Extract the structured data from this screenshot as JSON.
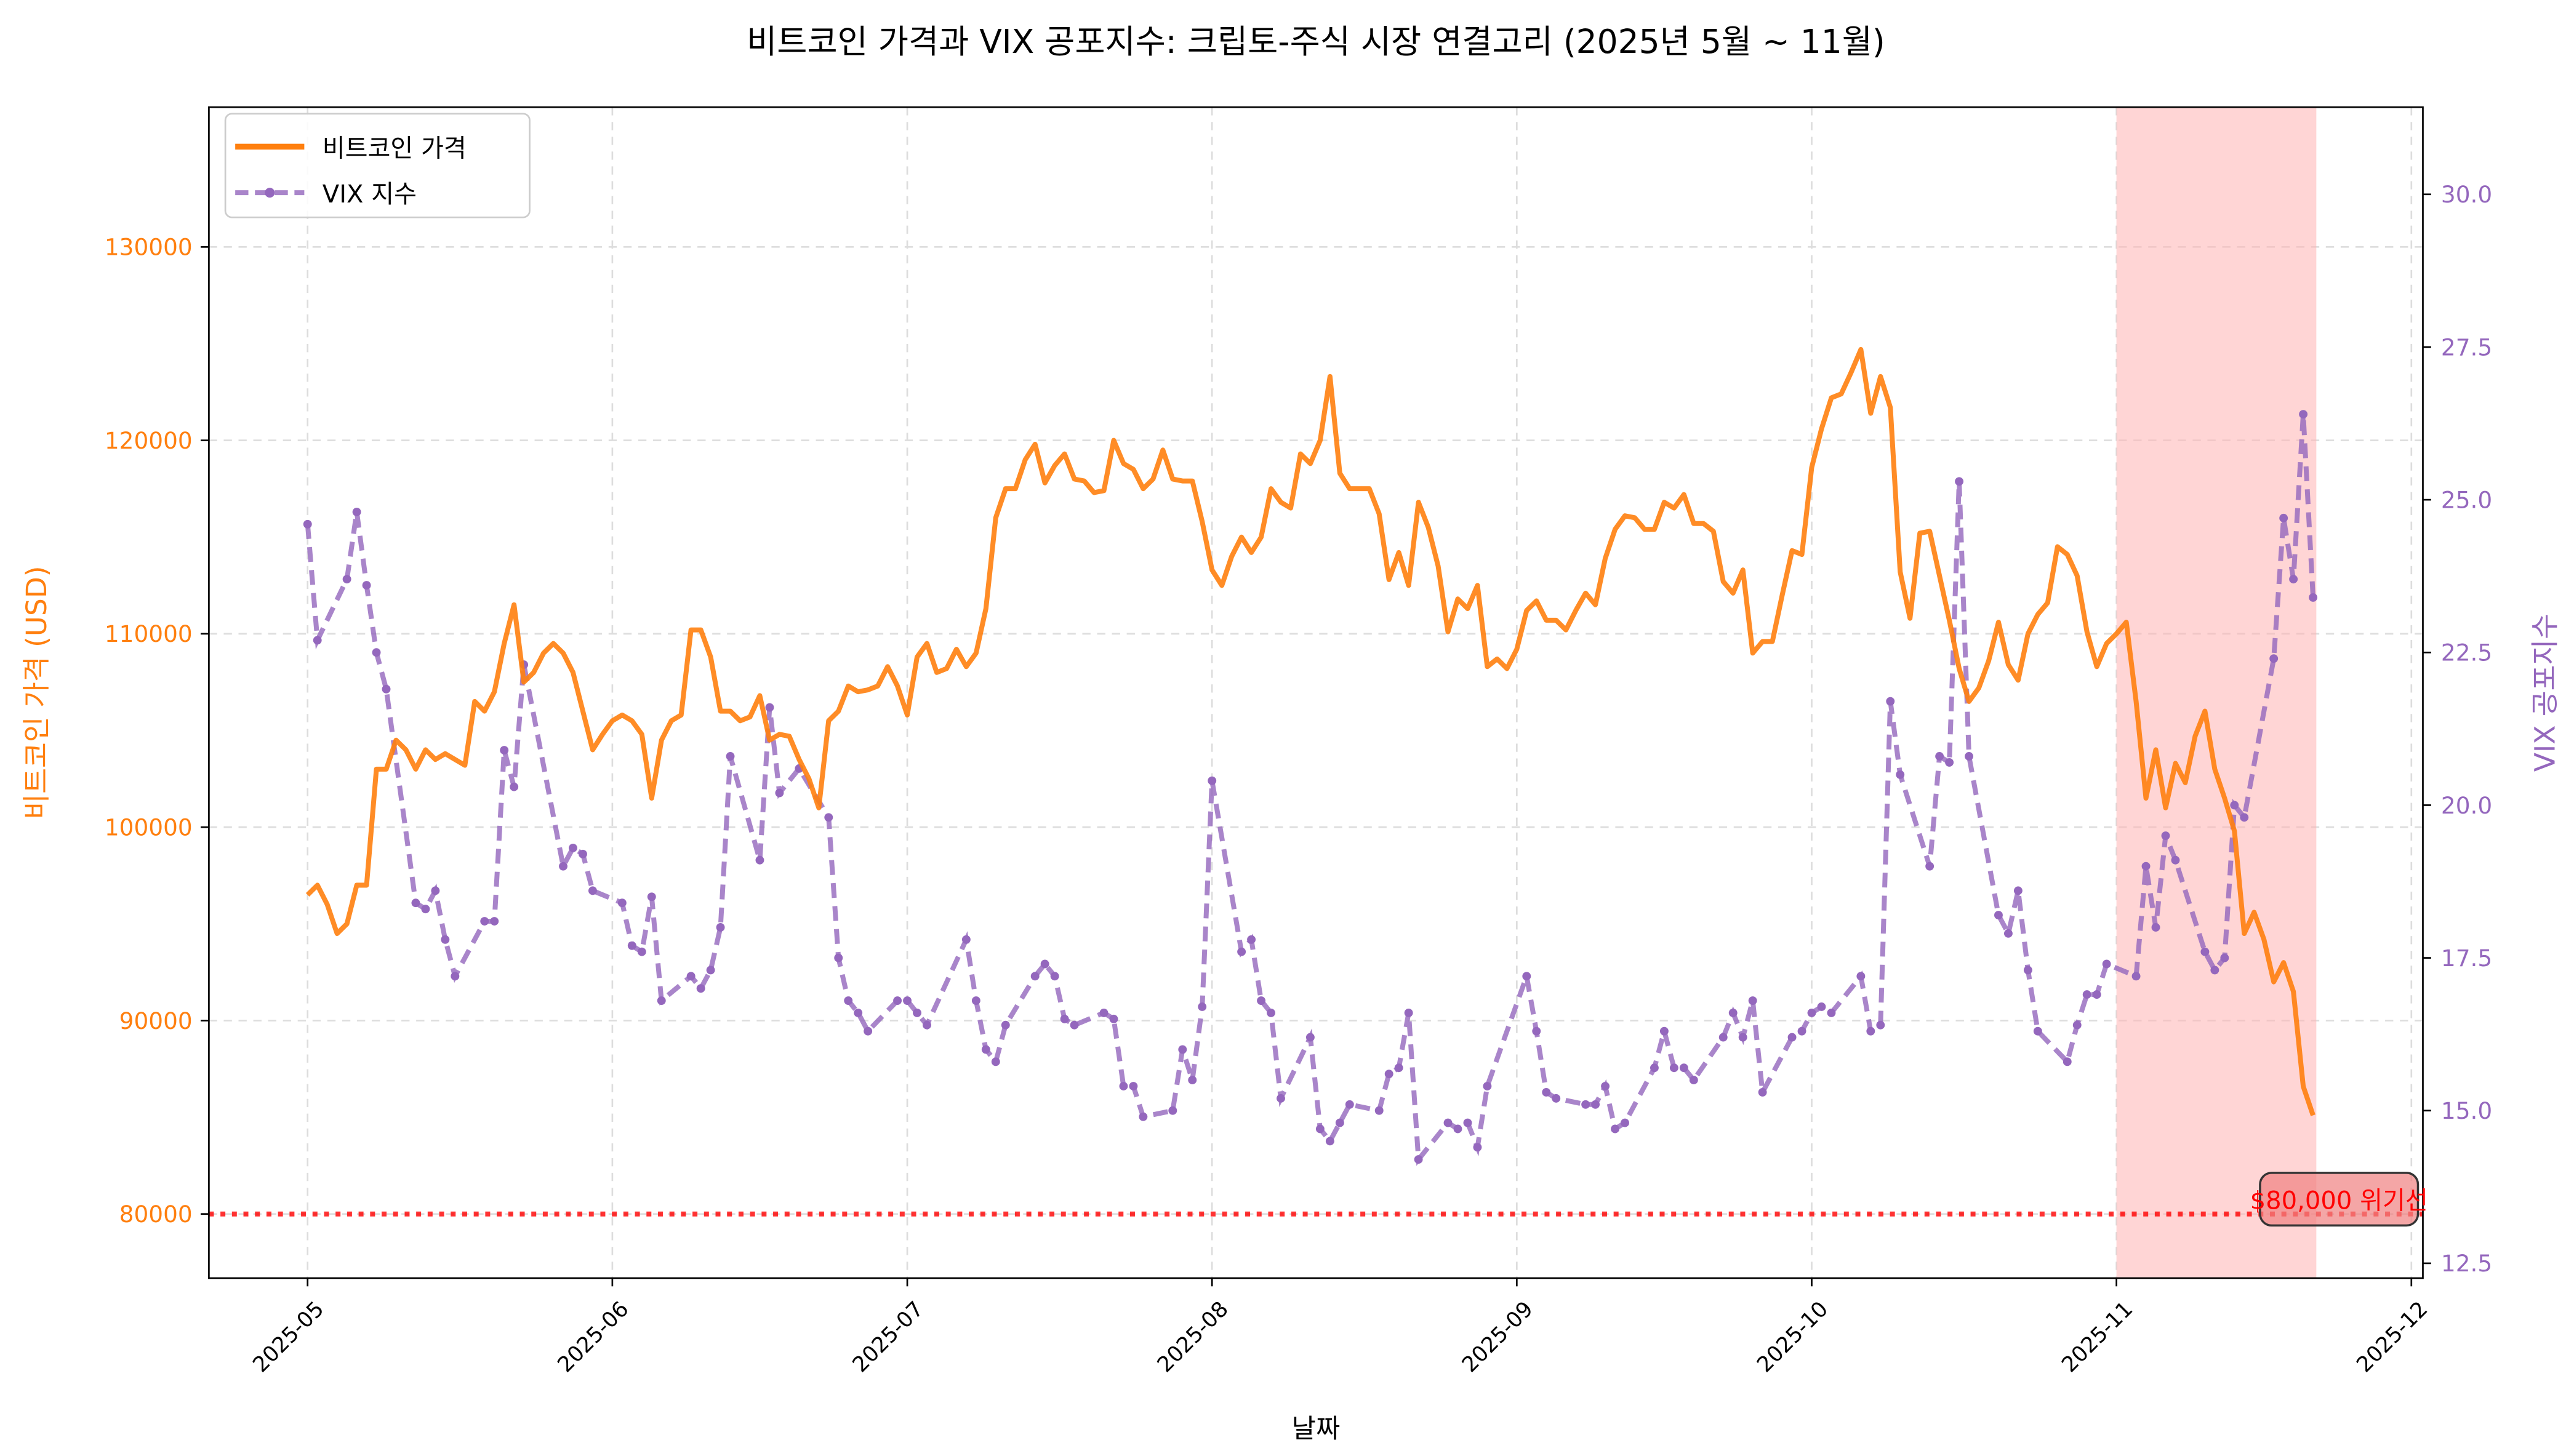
{
  "chart_data": {
    "type": "line",
    "title": "비트코인 가격과 VIX 공포지수: 크립토-주식 시장 연결고리 (2025년 5월 ~ 11월)",
    "xlabel": "날짜",
    "ylabel_left": "비트코인 가격 (USD)",
    "ylabel_right": "VIX 공포지수",
    "x_ticks": [
      "2025-05",
      "2025-06",
      "2025-07",
      "2025-08",
      "2025-09",
      "2025-10",
      "2025-11",
      "2025-12"
    ],
    "x_range": [
      "2025-04-21",
      "2025-12-02"
    ],
    "ylim_left": [
      76500,
      136800
    ],
    "ylim_right": [
      12.2,
      31.3
    ],
    "y_ticks_left": [
      80000,
      90000,
      100000,
      110000,
      120000,
      130000
    ],
    "y_ticks_right": [
      "12.5",
      "15.0",
      "17.5",
      "20.0",
      "22.5",
      "25.0",
      "27.5",
      "30.0"
    ],
    "grid": true,
    "legend_placement": "top-left",
    "colors": {
      "btc": "#ff7f0e",
      "vix": "#9467bd",
      "threshold": "#ff0000",
      "shade": "#ffb3b3"
    },
    "series": [
      {
        "name": "비트코인 가격",
        "axis": "left",
        "start_date": "2025-05-01",
        "frequency": "daily",
        "values": [
          96500,
          97000,
          96000,
          94500,
          95000,
          97000,
          97000,
          103000,
          103000,
          104500,
          104000,
          103000,
          104000,
          103500,
          103800,
          103500,
          103200,
          106500,
          106000,
          107000,
          109500,
          111500,
          107500,
          108000,
          109000,
          109500,
          109000,
          108000,
          106000,
          104000,
          104800,
          105500,
          105800,
          105500,
          104800,
          101500,
          104500,
          105500,
          105800,
          110200,
          110200,
          108800,
          106000,
          106000,
          105500,
          105700,
          106800,
          104500,
          104800,
          104700,
          103500,
          102500,
          101000,
          105500,
          106000,
          107300,
          107000,
          107100,
          107300,
          108300,
          107300,
          105800,
          108800,
          109500,
          108000,
          108200,
          109200,
          108300,
          109000,
          111300,
          116000,
          117500,
          117500,
          119000,
          119800,
          117800,
          118700,
          119300,
          118000,
          117900,
          117300,
          117400,
          120000,
          118800,
          118500,
          117500,
          118000,
          119500,
          118000,
          117900,
          117900,
          115800,
          113300,
          112500,
          114000,
          115000,
          114200,
          115000,
          117500,
          116800,
          116500,
          119300,
          118800,
          120000,
          123300,
          118300,
          117500,
          117500,
          117500,
          116200,
          112800,
          114200,
          112500,
          116800,
          115500,
          113500,
          110100,
          111800,
          111300,
          112500,
          108300,
          108700,
          108200,
          109200,
          111200,
          111700,
          110700,
          110700,
          110200,
          111200,
          112100,
          111500,
          113900,
          115400,
          116100,
          116000,
          115400,
          115400,
          116800,
          116500,
          117200,
          115700,
          115700,
          115300,
          112700,
          112100,
          113300,
          109000,
          109600,
          109600,
          112000,
          114300,
          114100,
          118600,
          120600,
          122200,
          122400,
          123500,
          124700,
          121400,
          123300,
          121700,
          113200,
          110800,
          115200,
          115300,
          113000,
          110700,
          108200,
          106500,
          107200,
          108600,
          110600,
          108400,
          107600,
          110000,
          111000,
          111600,
          114500,
          114100,
          113000,
          110100,
          108300,
          109500,
          110000,
          110600,
          106500,
          101500,
          104000,
          101000,
          103300,
          102300,
          104700,
          106000,
          103000,
          101500,
          99800,
          94500,
          95600,
          94200,
          92000,
          93000,
          91500,
          86600,
          85100
        ]
      },
      {
        "name": "VIX 지수",
        "axis": "right",
        "points": [
          [
            "05-01",
            24.6
          ],
          [
            "05-02",
            22.7
          ],
          [
            "05-05",
            23.7
          ],
          [
            "05-06",
            24.8
          ],
          [
            "05-07",
            23.6
          ],
          [
            "05-08",
            22.5
          ],
          [
            "05-09",
            21.9
          ],
          [
            "05-12",
            18.4
          ],
          [
            "05-13",
            18.3
          ],
          [
            "05-14",
            18.6
          ],
          [
            "05-15",
            17.8
          ],
          [
            "05-16",
            17.2
          ],
          [
            "05-19",
            18.1
          ],
          [
            "05-20",
            18.1
          ],
          [
            "05-21",
            20.9
          ],
          [
            "05-22",
            20.3
          ],
          [
            "05-23",
            22.3
          ],
          [
            "05-27",
            19.0
          ],
          [
            "05-28",
            19.3
          ],
          [
            "05-29",
            19.2
          ],
          [
            "05-30",
            18.6
          ],
          [
            "06-02",
            18.4
          ],
          [
            "06-03",
            17.7
          ],
          [
            "06-04",
            17.6
          ],
          [
            "06-05",
            18.5
          ],
          [
            "06-06",
            16.8
          ],
          [
            "06-09",
            17.2
          ],
          [
            "06-10",
            17.0
          ],
          [
            "06-11",
            17.3
          ],
          [
            "06-12",
            18.0
          ],
          [
            "06-13",
            20.8
          ],
          [
            "06-16",
            19.1
          ],
          [
            "06-17",
            21.6
          ],
          [
            "06-18",
            20.2
          ],
          [
            "06-20",
            20.6
          ],
          [
            "06-23",
            19.8
          ],
          [
            "06-24",
            17.5
          ],
          [
            "06-25",
            16.8
          ],
          [
            "06-26",
            16.6
          ],
          [
            "06-27",
            16.3
          ],
          [
            "06-30",
            16.8
          ],
          [
            "07-01",
            16.8
          ],
          [
            "07-02",
            16.6
          ],
          [
            "07-03",
            16.4
          ],
          [
            "07-07",
            17.8
          ],
          [
            "07-08",
            16.8
          ],
          [
            "07-09",
            16.0
          ],
          [
            "07-10",
            15.8
          ],
          [
            "07-11",
            16.4
          ],
          [
            "07-14",
            17.2
          ],
          [
            "07-15",
            17.4
          ],
          [
            "07-16",
            17.2
          ],
          [
            "07-17",
            16.5
          ],
          [
            "07-18",
            16.4
          ],
          [
            "07-21",
            16.6
          ],
          [
            "07-22",
            16.5
          ],
          [
            "07-23",
            15.4
          ],
          [
            "07-24",
            15.4
          ],
          [
            "07-25",
            14.9
          ],
          [
            "07-28",
            15.0
          ],
          [
            "07-29",
            16.0
          ],
          [
            "07-30",
            15.5
          ],
          [
            "07-31",
            16.7
          ],
          [
            "08-01",
            20.4
          ],
          [
            "08-04",
            17.6
          ],
          [
            "08-05",
            17.8
          ],
          [
            "08-06",
            16.8
          ],
          [
            "08-07",
            16.6
          ],
          [
            "08-08",
            15.2
          ],
          [
            "08-11",
            16.2
          ],
          [
            "08-12",
            14.7
          ],
          [
            "08-13",
            14.5
          ],
          [
            "08-14",
            14.8
          ],
          [
            "08-15",
            15.1
          ],
          [
            "08-18",
            15.0
          ],
          [
            "08-19",
            15.6
          ],
          [
            "08-20",
            15.7
          ],
          [
            "08-21",
            16.6
          ],
          [
            "08-22",
            14.2
          ],
          [
            "08-25",
            14.8
          ],
          [
            "08-26",
            14.7
          ],
          [
            "08-27",
            14.8
          ],
          [
            "08-28",
            14.4
          ],
          [
            "08-29",
            15.4
          ],
          [
            "09-02",
            17.2
          ],
          [
            "09-03",
            16.3
          ],
          [
            "09-04",
            15.3
          ],
          [
            "09-05",
            15.2
          ],
          [
            "09-08",
            15.1
          ],
          [
            "09-09",
            15.1
          ],
          [
            "09-10",
            15.4
          ],
          [
            "09-11",
            14.7
          ],
          [
            "09-12",
            14.8
          ],
          [
            "09-15",
            15.7
          ],
          [
            "09-16",
            16.3
          ],
          [
            "09-17",
            15.7
          ],
          [
            "09-18",
            15.7
          ],
          [
            "09-19",
            15.5
          ],
          [
            "09-22",
            16.2
          ],
          [
            "09-23",
            16.6
          ],
          [
            "09-24",
            16.2
          ],
          [
            "09-25",
            16.8
          ],
          [
            "09-26",
            15.3
          ],
          [
            "09-29",
            16.2
          ],
          [
            "09-30",
            16.3
          ],
          [
            "10-01",
            16.6
          ],
          [
            "10-02",
            16.7
          ],
          [
            "10-03",
            16.6
          ],
          [
            "10-06",
            17.2
          ],
          [
            "10-07",
            16.3
          ],
          [
            "10-08",
            16.4
          ],
          [
            "10-09",
            21.7
          ],
          [
            "10-10",
            20.5
          ],
          [
            "10-13",
            19.0
          ],
          [
            "10-14",
            20.8
          ],
          [
            "10-15",
            20.7
          ],
          [
            "10-16",
            25.3
          ],
          [
            "10-17",
            20.8
          ],
          [
            "10-20",
            18.2
          ],
          [
            "10-21",
            17.9
          ],
          [
            "10-22",
            18.6
          ],
          [
            "10-23",
            17.3
          ],
          [
            "10-24",
            16.3
          ],
          [
            "10-27",
            15.8
          ],
          [
            "10-28",
            16.4
          ],
          [
            "10-29",
            16.9
          ],
          [
            "10-30",
            16.9
          ],
          [
            "10-31",
            17.4
          ],
          [
            "11-03",
            17.2
          ],
          [
            "11-04",
            19.0
          ],
          [
            "11-05",
            18.0
          ],
          [
            "11-06",
            19.5
          ],
          [
            "11-07",
            19.1
          ],
          [
            "11-10",
            17.6
          ],
          [
            "11-11",
            17.3
          ],
          [
            "11-12",
            17.5
          ],
          [
            "11-13",
            20.0
          ],
          [
            "11-14",
            19.8
          ],
          [
            "11-17",
            22.4
          ],
          [
            "11-18",
            24.7
          ],
          [
            "11-19",
            23.7
          ],
          [
            "11-20",
            26.4
          ],
          [
            "11-21",
            23.4
          ]
        ]
      }
    ],
    "threshold": {
      "value": 80000,
      "label": "$80,000 위기선"
    },
    "shaded_range": [
      "2025-11-01",
      "2025-11-22"
    ]
  }
}
